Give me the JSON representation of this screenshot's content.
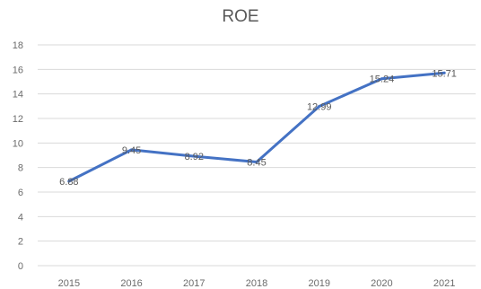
{
  "chart_data": {
    "type": "line",
    "title": "ROE",
    "xlabel": "",
    "ylabel": "",
    "categories": [
      "2015",
      "2016",
      "2017",
      "2018",
      "2019",
      "2020",
      "2021"
    ],
    "series": [
      {
        "values": [
          6.88,
          9.45,
          8.92,
          8.45,
          12.99,
          15.24,
          15.71
        ],
        "data_labels": [
          "6.88",
          "9.45",
          "8.92",
          "8.45",
          "12.99",
          "15.24",
          "15.71"
        ],
        "color": "#4472c4"
      }
    ],
    "ylim": [
      0,
      18
    ],
    "y_ticks": [
      0,
      2,
      4,
      6,
      8,
      10,
      12,
      14,
      16,
      18
    ],
    "y_tick_labels": [
      "0",
      "2",
      "4",
      "6",
      "8",
      "10",
      "12",
      "14",
      "16",
      "18"
    ],
    "grid": true,
    "gridline_color": "#d9d9d9",
    "legend": "none"
  }
}
